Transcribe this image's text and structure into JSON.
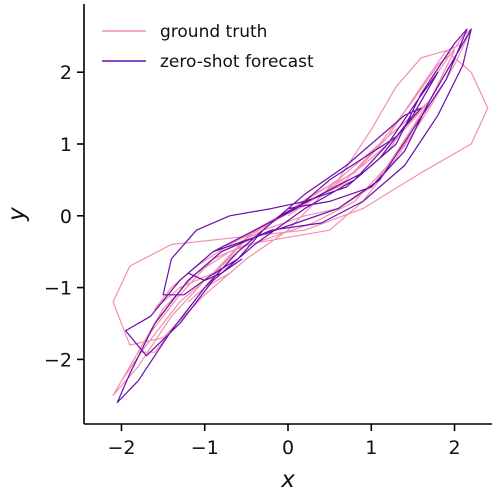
{
  "chart_data": {
    "type": "line",
    "title": "",
    "xlabel": "x",
    "ylabel": "y",
    "xlim": [
      -2.45,
      2.45
    ],
    "ylim": [
      -2.9,
      2.95
    ],
    "xticks": [
      -2,
      -1,
      0,
      1,
      2
    ],
    "yticks": [
      -2,
      -1,
      0,
      1,
      2
    ],
    "xtick_labels": [
      "−2",
      "−1",
      "0",
      "1",
      "2"
    ],
    "ytick_labels": [
      "−2",
      "−1",
      "0",
      "1",
      "2"
    ],
    "grid": false,
    "legend_position": "top-left",
    "series": [
      {
        "name": "ground truth",
        "color": "#f48fb1",
        "points": [
          [
            0.0,
            0.0
          ],
          [
            0.4,
            0.3
          ],
          [
            0.8,
            0.5
          ],
          [
            1.2,
            0.9
          ],
          [
            1.5,
            1.4
          ],
          [
            1.8,
            2.0
          ],
          [
            2.1,
            2.5
          ],
          [
            2.2,
            2.6
          ],
          [
            2.0,
            2.1
          ],
          [
            1.7,
            1.5
          ],
          [
            1.3,
            0.8
          ],
          [
            0.9,
            0.2
          ],
          [
            0.5,
            -0.2
          ],
          [
            0.0,
            -0.3
          ],
          [
            -0.5,
            -0.4
          ],
          [
            -0.9,
            -0.6
          ],
          [
            -1.3,
            -1.1
          ],
          [
            -1.7,
            -1.7
          ],
          [
            -2.0,
            -2.3
          ],
          [
            -2.1,
            -2.5
          ],
          [
            -1.8,
            -2.1
          ],
          [
            -1.4,
            -1.4
          ],
          [
            -1.0,
            -0.9
          ],
          [
            -0.6,
            -0.5
          ],
          [
            -0.2,
            -0.1
          ],
          [
            0.3,
            0.3
          ],
          [
            0.8,
            0.6
          ],
          [
            1.2,
            1.1
          ],
          [
            1.6,
            1.8
          ],
          [
            1.9,
            2.3
          ],
          [
            2.1,
            2.4
          ],
          [
            1.8,
            1.8
          ],
          [
            1.4,
            1.0
          ],
          [
            1.0,
            0.4
          ],
          [
            0.6,
            0.1
          ],
          [
            0.2,
            0.0
          ],
          [
            -0.3,
            -0.2
          ],
          [
            -0.8,
            -0.5
          ],
          [
            -1.2,
            -0.9
          ],
          [
            -1.6,
            -1.5
          ],
          [
            -1.9,
            -2.1
          ],
          [
            -2.0,
            -2.3
          ],
          [
            -1.7,
            -1.8
          ],
          [
            -1.3,
            -1.2
          ],
          [
            -0.9,
            -0.8
          ],
          [
            -0.5,
            -0.3
          ],
          [
            0.1,
            0.1
          ],
          [
            0.7,
            0.5
          ],
          [
            1.1,
            1.0
          ],
          [
            1.5,
            1.6
          ],
          [
            1.8,
            2.1
          ],
          [
            2.0,
            2.3
          ],
          [
            1.7,
            1.6
          ],
          [
            1.2,
            0.7
          ],
          [
            0.8,
            0.2
          ],
          [
            0.3,
            -0.1
          ],
          [
            -0.2,
            -0.3
          ],
          [
            -0.7,
            -0.5
          ],
          [
            -1.1,
            -0.8
          ],
          [
            -1.5,
            -1.3
          ],
          [
            -1.8,
            -1.9
          ],
          [
            -1.6,
            -1.9
          ],
          [
            -1.2,
            -1.3
          ],
          [
            -0.8,
            -0.7
          ],
          [
            -0.4,
            -0.2
          ],
          [
            0.2,
            0.2
          ],
          [
            0.6,
            0.5
          ],
          [
            1.0,
            1.2
          ],
          [
            1.3,
            1.8
          ],
          [
            1.6,
            2.2
          ],
          [
            1.9,
            2.3
          ],
          [
            2.2,
            2.0
          ],
          [
            2.4,
            1.5
          ],
          [
            2.2,
            1.0
          ],
          [
            1.6,
            0.6
          ],
          [
            0.9,
            0.1
          ],
          [
            0.2,
            -0.2
          ],
          [
            -0.6,
            -0.3
          ],
          [
            -1.4,
            -0.4
          ],
          [
            -1.9,
            -0.7
          ],
          [
            -2.1,
            -1.2
          ],
          [
            -1.9,
            -1.8
          ],
          [
            -1.5,
            -1.7
          ],
          [
            -1.0,
            -1.1
          ],
          [
            -0.5,
            -0.6
          ],
          [
            0.0,
            -0.2
          ],
          [
            0.5,
            0.4
          ],
          [
            1.0,
            0.9
          ],
          [
            1.4,
            1.3
          ],
          [
            1.7,
            1.6
          ],
          [
            1.4,
            1.2
          ],
          [
            0.9,
            0.7
          ],
          [
            0.4,
            0.3
          ],
          [
            -0.2,
            -0.1
          ],
          [
            -0.7,
            -0.4
          ],
          [
            -1.1,
            -0.7
          ],
          [
            -1.4,
            -1.0
          ],
          [
            -1.6,
            -1.3
          ],
          [
            -1.3,
            -1.0
          ],
          [
            -0.9,
            -0.8
          ],
          [
            -0.6,
            -0.6
          ],
          [
            -0.9,
            -0.9
          ],
          [
            -1.2,
            -1.2
          ],
          [
            -1.0,
            -1.0
          ],
          [
            -0.7,
            -0.8
          ]
        ]
      },
      {
        "name": "zero-shot forecast",
        "color": "#6a0dad",
        "points": [
          [
            0.0,
            0.1
          ],
          [
            0.5,
            0.2
          ],
          [
            1.0,
            0.4
          ],
          [
            1.4,
            0.9
          ],
          [
            1.7,
            1.6
          ],
          [
            2.0,
            2.2
          ],
          [
            2.2,
            2.6
          ],
          [
            2.1,
            2.1
          ],
          [
            1.8,
            1.4
          ],
          [
            1.4,
            0.7
          ],
          [
            0.9,
            0.2
          ],
          [
            0.4,
            -0.1
          ],
          [
            -0.2,
            -0.2
          ],
          [
            -0.8,
            -0.5
          ],
          [
            -1.2,
            -0.9
          ],
          [
            -1.6,
            -1.5
          ],
          [
            -1.9,
            -2.2
          ],
          [
            -2.05,
            -2.6
          ],
          [
            -1.8,
            -2.3
          ],
          [
            -1.4,
            -1.6
          ],
          [
            -1.0,
            -1.0
          ],
          [
            -0.6,
            -0.5
          ],
          [
            -0.1,
            0.0
          ],
          [
            0.4,
            0.3
          ],
          [
            0.9,
            0.6
          ],
          [
            1.3,
            1.0
          ],
          [
            1.6,
            1.7
          ],
          [
            2.0,
            2.4
          ],
          [
            2.15,
            2.6
          ],
          [
            1.9,
            1.9
          ],
          [
            1.5,
            1.2
          ],
          [
            1.1,
            0.5
          ],
          [
            0.6,
            0.1
          ],
          [
            0.1,
            -0.1
          ],
          [
            -0.4,
            -0.3
          ],
          [
            -0.9,
            -0.5
          ],
          [
            -1.3,
            -0.9
          ],
          [
            -1.65,
            -1.4
          ],
          [
            -1.95,
            -1.6
          ],
          [
            -1.7,
            -1.95
          ],
          [
            -1.3,
            -1.5
          ],
          [
            -0.9,
            -0.9
          ],
          [
            -0.4,
            -0.4
          ],
          [
            0.2,
            0.1
          ],
          [
            0.8,
            0.5
          ],
          [
            1.2,
            1.0
          ],
          [
            1.55,
            1.6
          ],
          [
            1.8,
            2.0
          ],
          [
            1.5,
            1.4
          ],
          [
            1.1,
            0.8
          ],
          [
            0.7,
            0.4
          ],
          [
            0.2,
            0.2
          ],
          [
            -0.2,
            0.1
          ],
          [
            -0.7,
            0.0
          ],
          [
            -1.1,
            -0.2
          ],
          [
            -1.4,
            -0.6
          ],
          [
            -1.5,
            -1.1
          ],
          [
            -1.25,
            -1.1
          ],
          [
            -0.95,
            -0.85
          ],
          [
            -0.6,
            -0.6
          ],
          [
            -0.3,
            -0.2
          ],
          [
            0.2,
            0.3
          ],
          [
            0.7,
            0.7
          ],
          [
            1.1,
            1.1
          ],
          [
            1.4,
            1.4
          ],
          [
            1.6,
            1.5
          ],
          [
            1.3,
            1.1
          ],
          [
            0.9,
            0.8
          ],
          [
            0.5,
            0.5
          ],
          [
            0.1,
            0.1
          ],
          [
            -0.4,
            -0.2
          ],
          [
            -0.9,
            -0.5
          ],
          [
            -1.2,
            -0.8
          ],
          [
            -1.0,
            -0.9
          ],
          [
            -0.8,
            -0.8
          ],
          [
            -0.55,
            -0.6
          ]
        ]
      }
    ]
  }
}
